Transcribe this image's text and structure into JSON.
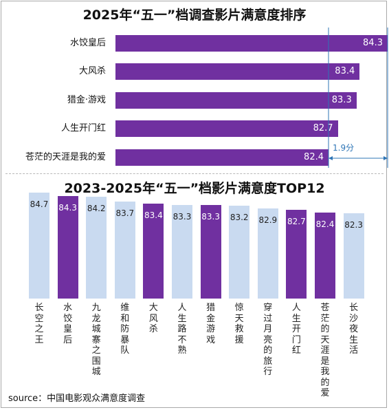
{
  "colors": {
    "highlight": "#7030a0",
    "other": "#c9daf0",
    "annotation": "#2e75b6"
  },
  "chart_data": [
    {
      "type": "bar",
      "orientation": "horizontal",
      "title": "2025年“五一”档调查影片满意度排序",
      "categories": [
        "水饺皇后",
        "大风杀",
        "猎金·游戏",
        "人生开门红",
        "苍茫的天涯是我的爱"
      ],
      "values": [
        84.3,
        83.4,
        83.3,
        82.7,
        82.4
      ],
      "value_labels": [
        "84.3",
        "83.4",
        "83.3",
        "82.7",
        "82.4"
      ],
      "annotation": "1.9分",
      "grid": false,
      "legend": "none"
    },
    {
      "type": "bar",
      "orientation": "vertical",
      "title": "2023-2025年“五一”档影片满意度TOP12",
      "categories": [
        "长空之王",
        "水饺皇后",
        "九龙城寨之围城",
        "维和防暴队",
        "大风杀",
        "人生路不熟",
        "猎金游戏",
        "惊天救援",
        "穿过月亮的旅行",
        "人生开门红",
        "苍茫的天涯是我的爱",
        "长沙夜生活"
      ],
      "values": [
        84.7,
        84.3,
        84.2,
        83.7,
        83.4,
        83.3,
        83.3,
        83.2,
        82.9,
        82.7,
        82.4,
        82.3
      ],
      "value_labels": [
        "84.7",
        "84.3",
        "84.2",
        "83.7",
        "83.4",
        "83.3",
        "83.3",
        "83.2",
        "82.9",
        "82.7",
        "82.4",
        "82.3"
      ],
      "highlighted": [
        false,
        true,
        false,
        false,
        true,
        false,
        true,
        false,
        false,
        true,
        true,
        false
      ],
      "grid": false,
      "legend": "none"
    }
  ],
  "source": "source：中国电影观众满意度调查"
}
